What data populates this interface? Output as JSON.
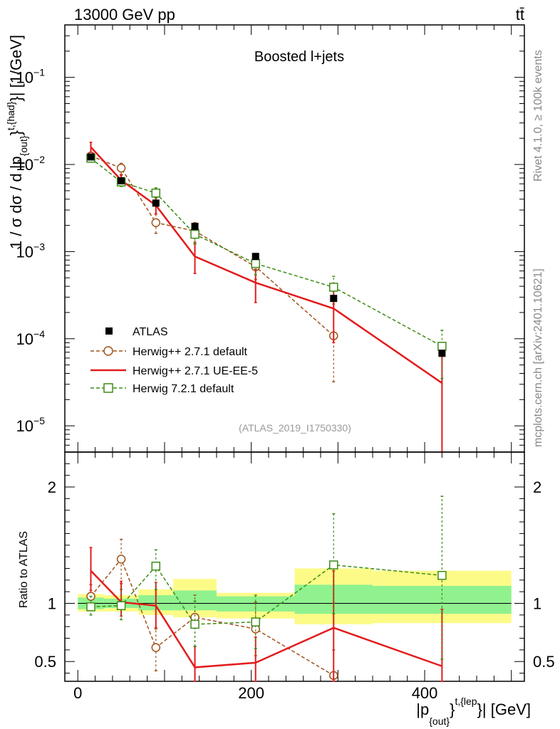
{
  "header": {
    "energy_label": "13000 GeV pp",
    "process_label": "tt̄",
    "rivet_label": "Rivet 4.1.0, ≥ 100k events",
    "mcplots_label": "mcplots.cern.ch [arXiv:2401.10621]"
  },
  "chart_data": [
    {
      "type": "line",
      "title": "Boosted l+jets",
      "analysis_label": "(ATLAS_2019_I1750330)",
      "ylabel_parts": [
        "1 / σ dσ / d |p",
        "{out}",
        "}",
        "t,{had}",
        "}| [1/GeV]"
      ],
      "yscale": "log",
      "ylim": [
        5e-06,
        0.4
      ],
      "xlim": [
        -15,
        515
      ],
      "y_ticks": [
        {
          "value": 1e-05,
          "mantissa": "10",
          "exp": "−5"
        },
        {
          "value": 0.0001,
          "mantissa": "10",
          "exp": "−4"
        },
        {
          "value": 0.001,
          "mantissa": "10",
          "exp": "−3"
        },
        {
          "value": 0.01,
          "mantissa": "10",
          "exp": "−2"
        },
        {
          "value": 0.1,
          "mantissa": "10",
          "exp": "−1"
        }
      ],
      "x": [
        15,
        50,
        90,
        135,
        205,
        295,
        420
      ],
      "series": [
        {
          "name": "ATLAS",
          "color": "#000000",
          "style": "data",
          "values": [
            0.0122,
            0.0065,
            0.0036,
            0.00195,
            0.00088,
            0.00029,
            6.8e-05
          ]
        },
        {
          "name": "Herwig++ 2.7.1 default",
          "color": "#a0521a",
          "style": "dashed-circle",
          "values": [
            0.0125,
            0.0091,
            0.00215,
            0.00172,
            0.00067,
            0.000108,
            null
          ],
          "err_lo": [
            0.0113,
            0.0077,
            0.00162,
            0.00128,
            0.00048,
            3.2e-05,
            null
          ],
          "err_hi": [
            0.0138,
            0.0103,
            0.0027,
            0.00215,
            0.00088,
            0.00025,
            null
          ]
        },
        {
          "name": "Herwig++ 2.7.1 UE-EE-5",
          "color": "#e31b1b",
          "style": "solid",
          "values": [
            0.0158,
            0.0066,
            0.0034,
            0.00088,
            0.00044,
            0.000222,
            3.1e-05
          ],
          "err_lo": [
            0.0138,
            0.0058,
            0.0027,
            0.00056,
            0.00026,
            9e-05,
            5e-07
          ],
          "err_hi": [
            0.018,
            0.0075,
            0.0042,
            0.00124,
            0.00063,
            0.00037,
            6.6e-05
          ]
        },
        {
          "name": "Herwig 7.2.1 default",
          "color": "#3c8c16",
          "style": "dashed-square",
          "values": [
            0.0118,
            0.0063,
            0.0047,
            0.00158,
            0.00073,
            0.00039,
            8.2e-05
          ],
          "err_lo": [
            0.0108,
            0.0056,
            0.0041,
            0.00122,
            0.00054,
            0.00027,
            3.5e-05
          ],
          "err_hi": [
            0.0128,
            0.007,
            0.0054,
            0.00198,
            0.00094,
            0.00052,
            0.000125
          ]
        }
      ]
    },
    {
      "type": "line",
      "ylabel": "Ratio to ATLAS",
      "xlabel_parts": [
        "|p",
        "{out}",
        "}",
        "t,{lep",
        "}| [GeV]"
      ],
      "ylim": [
        0.33,
        2.3
      ],
      "xlim": [
        -15,
        515
      ],
      "y_ticks": [
        0.5,
        1,
        2
      ],
      "y_tick_labels": [
        "0.5",
        "1",
        "2"
      ],
      "x_ticks": [
        0,
        200,
        400
      ],
      "x_tick_labels": [
        "0",
        "200",
        "400"
      ],
      "x": [
        15,
        50,
        90,
        135,
        205,
        295,
        420
      ],
      "bins": [
        [
          0,
          30
        ],
        [
          30,
          70
        ],
        [
          70,
          110
        ],
        [
          110,
          160
        ],
        [
          160,
          250
        ],
        [
          250,
          340
        ],
        [
          340,
          500
        ]
      ],
      "band_inner": [
        [
          0.95,
          1.05
        ],
        [
          0.96,
          1.04
        ],
        [
          0.94,
          1.07
        ],
        [
          0.94,
          1.11
        ],
        [
          0.93,
          1.06
        ],
        [
          0.91,
          1.16
        ],
        [
          0.91,
          1.15
        ]
      ],
      "band_outer": [
        [
          0.93,
          1.08
        ],
        [
          0.93,
          1.07
        ],
        [
          0.9,
          1.12
        ],
        [
          0.88,
          1.21
        ],
        [
          0.87,
          1.09
        ],
        [
          0.82,
          1.3
        ],
        [
          0.83,
          1.28
        ]
      ],
      "band_colors": {
        "inner": "#8ff28f",
        "outer": "#fdfb88"
      },
      "series": [
        {
          "name": "Herwig++ 2.7.1 default",
          "color": "#a0521a",
          "style": "dashed-circle",
          "values": [
            1.06,
            1.38,
            0.62,
            0.88,
            0.78,
            0.38,
            null
          ],
          "err_lo": [
            0.98,
            1.17,
            0.42,
            0.63,
            0.55,
            0.33,
            null
          ],
          "err_hi": [
            1.16,
            1.55,
            0.78,
            1.07,
            1.01,
            0.6,
            null
          ]
        },
        {
          "name": "Herwig++ 2.7.1 UE-EE-5",
          "color": "#e31b1b",
          "style": "solid",
          "values": [
            1.28,
            1.01,
            0.98,
            0.45,
            0.49,
            0.79,
            0.46
          ],
          "err_lo": [
            1.11,
            0.89,
            0.79,
            0.29,
            0.3,
            0.33,
            0.33
          ],
          "err_hi": [
            1.48,
            1.19,
            1.18,
            0.63,
            0.71,
            1.28,
            0.95
          ]
        },
        {
          "name": "Herwig 7.2.1 default",
          "color": "#3c8c16",
          "style": "dashed-square",
          "values": [
            0.97,
            0.98,
            1.32,
            0.82,
            0.84,
            1.33,
            1.24
          ],
          "err_lo": [
            0.9,
            0.86,
            1.12,
            0.63,
            0.61,
            0.91,
            0.52
          ],
          "err_hi": [
            1.06,
            1.12,
            1.46,
            1.02,
            1.07,
            1.77,
            1.92
          ]
        }
      ]
    }
  ]
}
